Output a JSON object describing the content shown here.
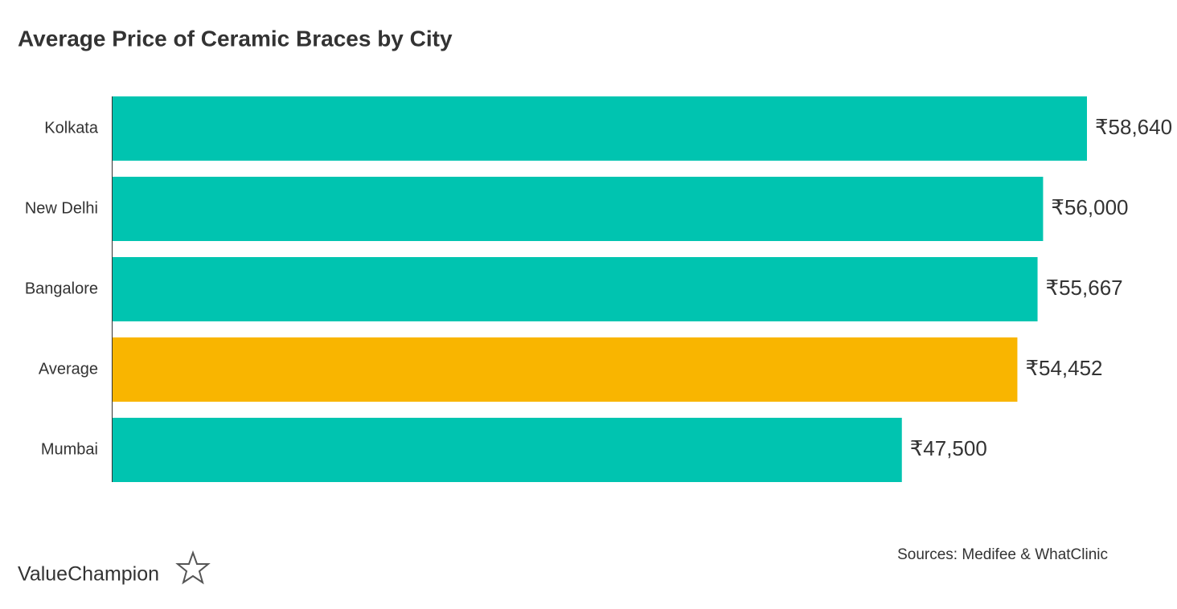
{
  "chart_data": {
    "type": "bar",
    "orientation": "horizontal",
    "title": "Average Price of Ceramic Braces by City",
    "categories": [
      "Kolkata",
      "New Delhi",
      "Bangalore",
      "Average",
      "Mumbai"
    ],
    "values": [
      58640,
      56000,
      55667,
      54452,
      47500
    ],
    "value_labels": [
      "₹58,640",
      "₹56,000",
      "₹55,667",
      "₹54,452",
      "₹47,500"
    ],
    "colors": [
      "#00c4b0",
      "#00c4b0",
      "#00c4b0",
      "#f9b500",
      "#00c4b0"
    ],
    "source": "Sources: Medifee & WhatClinic",
    "brand": "ValueChampion"
  }
}
